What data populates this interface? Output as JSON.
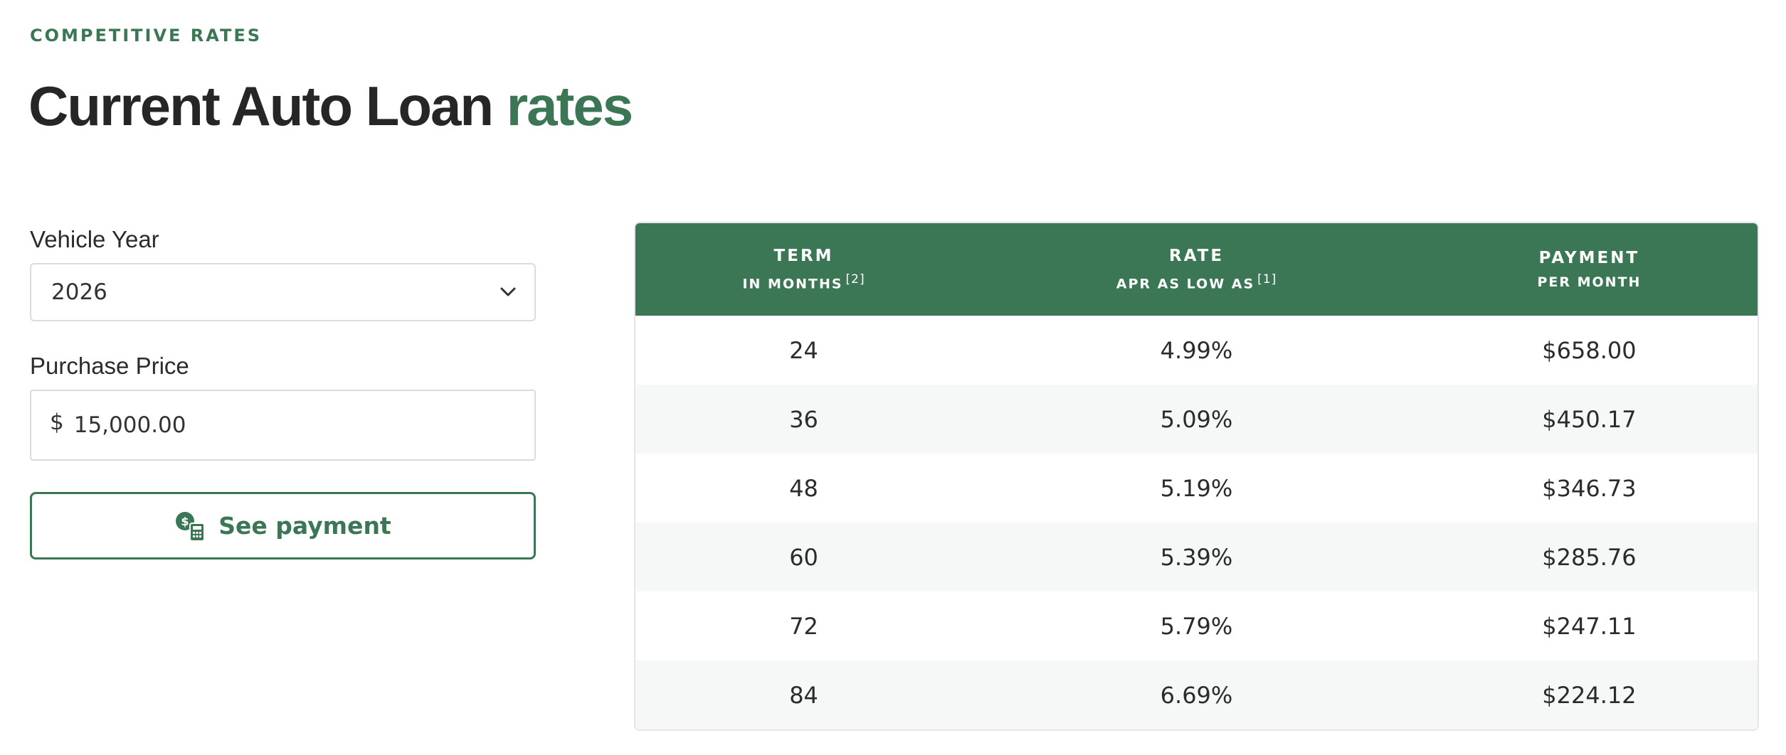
{
  "eyebrow": "COMPETITIVE RATES",
  "headline": {
    "main": "Current Auto Loan",
    "accent": "rates"
  },
  "form": {
    "vehicle_year_label": "Vehicle Year",
    "vehicle_year_value": "2026",
    "purchase_price_label": "Purchase Price",
    "currency_symbol": "$",
    "purchase_price_value": "15,000.00",
    "see_payment_label": "See payment",
    "see_payment_icon": "payment-calculator-icon",
    "select_icon": "chevron-down-icon"
  },
  "table": {
    "headers": [
      {
        "main": "TERM",
        "sub": "IN MONTHS",
        "footnote": "[2]"
      },
      {
        "main": "RATE",
        "sub": "APR AS LOW AS",
        "footnote": "[1]"
      },
      {
        "main": "PAYMENT",
        "sub": "PER MONTH",
        "footnote": ""
      }
    ],
    "rows": [
      {
        "term": "24",
        "rate": "4.99%",
        "payment": "$658.00"
      },
      {
        "term": "36",
        "rate": "5.09%",
        "payment": "$450.17"
      },
      {
        "term": "48",
        "rate": "5.19%",
        "payment": "$346.73"
      },
      {
        "term": "60",
        "rate": "5.39%",
        "payment": "$285.76"
      },
      {
        "term": "72",
        "rate": "5.79%",
        "payment": "$247.11"
      },
      {
        "term": "84",
        "rate": "6.69%",
        "payment": "$224.12"
      }
    ]
  },
  "colors": {
    "accent": "#3b7754",
    "text": "#262626",
    "row_alt": "#f6f8f7",
    "border": "#dcdcdc"
  }
}
